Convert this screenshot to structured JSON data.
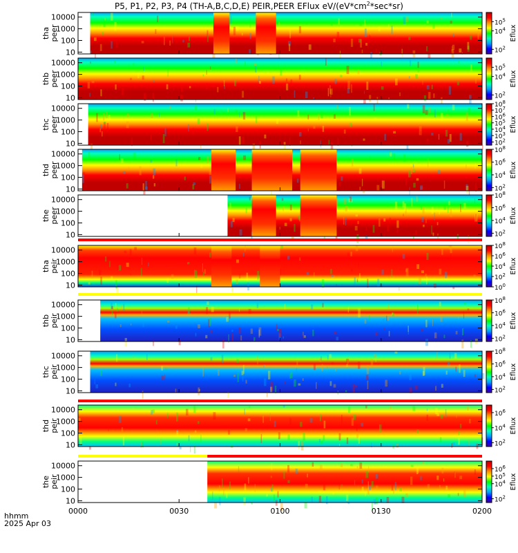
{
  "title_prefix": "P5, P1, P2, P3, P4 (TH-A,B,C,D,E) PEIR,PEER EFlux eV/(eV*cm",
  "title_sup": "2",
  "title_suffix": "*sec*sr)",
  "time_axis_label": "hhmm",
  "date_label": "2025 Apr 03",
  "colors": {
    "spectrum": [
      "#4000a0",
      "#0000ff",
      "#00a0ff",
      "#00ffc0",
      "#00ff00",
      "#ffff00",
      "#ff9000",
      "#ff0000",
      "#c00000"
    ],
    "bar_red": "#ff0000",
    "bar_yellow": "#ffff00"
  },
  "chart_data": {
    "type": "heatmap",
    "x_ticks": [
      "0000",
      "0030",
      "0100",
      "0130",
      "0200"
    ],
    "x_range": [
      "00:00",
      "02:00"
    ],
    "y_scale": "log",
    "y_ticks": [
      "10",
      "100",
      "1000",
      "10000"
    ],
    "y_range_eV": [
      7,
      25000
    ],
    "colorbar_label": "Eflux",
    "panels": [
      {
        "probe": "tha",
        "species": "peer",
        "cb_ticks": [
          [
            "10",
            "2"
          ],
          [
            "10",
            "4"
          ],
          [
            "10",
            "5"
          ]
        ],
        "cb_range": [
          1.5,
          6
        ],
        "kind": "peer",
        "data_start": 0.03,
        "bursts": [
          [
            0.335,
            0.375
          ],
          [
            0.44,
            0.49
          ]
        ]
      },
      {
        "probe": "thb",
        "species": "peer",
        "cb_ticks": [
          [
            "10",
            "2"
          ],
          [
            "10",
            "4"
          ],
          [
            "10",
            "5"
          ]
        ],
        "cb_range": [
          1.5,
          6
        ],
        "kind": "peer",
        "data_start": 0.0,
        "bursts": []
      },
      {
        "probe": "thc",
        "species": "peer",
        "cb_ticks": [
          [
            "10",
            "2"
          ],
          [
            "10",
            "3"
          ],
          [
            "10",
            "4"
          ],
          [
            "10",
            "5"
          ],
          [
            "10",
            "6"
          ],
          [
            "10",
            "7"
          ],
          [
            "10",
            "8"
          ]
        ],
        "cb_range": [
          1.5,
          8
        ],
        "kind": "peer",
        "data_start": 0.025,
        "bursts": []
      },
      {
        "probe": "thd",
        "species": "peer",
        "cb_ticks": [
          [
            "10",
            "2"
          ],
          [
            "10",
            "4"
          ],
          [
            "10",
            "6"
          ],
          [
            "10",
            "8"
          ]
        ],
        "cb_range": [
          1.5,
          8
        ],
        "kind": "peer",
        "data_start": 0.01,
        "bursts": [
          [
            0.33,
            0.39
          ],
          [
            0.43,
            0.53
          ],
          [
            0.55,
            0.64
          ]
        ]
      },
      {
        "probe": "the",
        "species": "peer",
        "cb_ticks": [
          [
            "10",
            "2"
          ],
          [
            "10",
            "4"
          ],
          [
            "10",
            "6"
          ],
          [
            "10",
            "8"
          ]
        ],
        "cb_range": [
          1.5,
          8
        ],
        "kind": "peer",
        "data_start": 0.37,
        "bursts": [
          [
            0.43,
            0.49
          ],
          [
            0.55,
            0.64
          ]
        ]
      },
      {
        "probe": "tha",
        "species": "peir",
        "cb_ticks": [
          [
            "10",
            "0"
          ],
          [
            "10",
            "2"
          ],
          [
            "10",
            "4"
          ],
          [
            "10",
            "6"
          ],
          [
            "10",
            "8"
          ]
        ],
        "cb_range": [
          0,
          8
        ],
        "kind": "peir",
        "data_start": 0.0,
        "bursts": [
          [
            0.33,
            0.38
          ],
          [
            0.45,
            0.5
          ]
        ]
      },
      {
        "probe": "thb",
        "species": "peir",
        "cb_ticks": [
          [
            "10",
            "2"
          ],
          [
            "10",
            "4"
          ],
          [
            "10",
            "6"
          ],
          [
            "10",
            "8"
          ]
        ],
        "cb_range": [
          1.5,
          8
        ],
        "kind": "peir_quiet",
        "data_start": 0.055,
        "bursts": []
      },
      {
        "probe": "thc",
        "species": "peir",
        "cb_ticks": [
          [
            "10",
            "2"
          ],
          [
            "10",
            "4"
          ],
          [
            "10",
            "6"
          ],
          [
            "10",
            "8"
          ]
        ],
        "cb_range": [
          1.5,
          8
        ],
        "kind": "peir_quiet",
        "data_start": 0.03,
        "bursts": []
      },
      {
        "probe": "thd",
        "species": "peir",
        "cb_ticks": [
          [
            "10",
            "2"
          ],
          [
            "10",
            "4"
          ],
          [
            "10",
            "6"
          ]
        ],
        "cb_range": [
          1.5,
          7
        ],
        "kind": "peir_sheath",
        "data_start": 0.0,
        "bursts": []
      },
      {
        "probe": "the",
        "species": "peir",
        "cb_ticks": [
          [
            "10",
            "2"
          ],
          [
            "10",
            "4"
          ],
          [
            "10",
            "5"
          ],
          [
            "10",
            "6"
          ]
        ],
        "cb_range": [
          1.5,
          7
        ],
        "kind": "peir_sheath",
        "data_start": 0.32,
        "bursts": []
      }
    ],
    "region_bars": [
      {
        "after_panel": 4,
        "segments": [
          {
            "color": "red",
            "from": 0.0,
            "to": 1.0
          }
        ]
      },
      {
        "after_panel": 5,
        "segments": [
          {
            "color": "yellow",
            "from": 0.0,
            "to": 1.0
          }
        ]
      },
      {
        "after_panel": 7,
        "segments": [
          {
            "color": "red",
            "from": 0.0,
            "to": 1.0
          }
        ]
      },
      {
        "after_panel": 8,
        "segments": [
          {
            "color": "yellow",
            "from": 0.0,
            "to": 0.32
          },
          {
            "color": "red",
            "from": 0.32,
            "to": 1.0
          }
        ]
      }
    ]
  }
}
